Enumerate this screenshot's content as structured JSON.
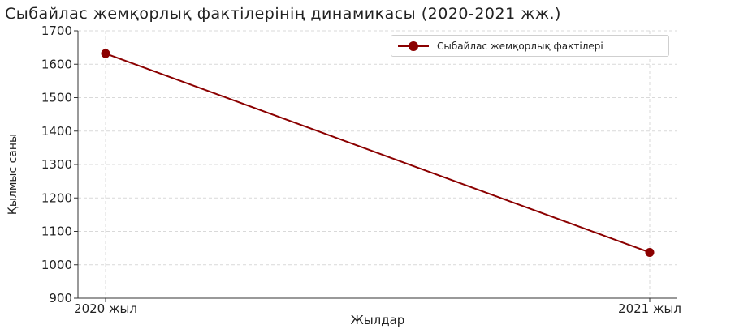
{
  "chart_data": {
    "type": "line",
    "title": "Сыбайлас жемқорлық фактілерінің динамикасы (2020-2021 жж.)",
    "xlabel": "Жылдар",
    "ylabel": "Қылмыс саны",
    "categories": [
      "2020 жыл",
      "2021 жыл"
    ],
    "series": [
      {
        "name": "Сыбайлас жемқорлық фактілері",
        "values": [
          1632,
          1037
        ],
        "color": "#8b0000"
      }
    ],
    "ylim": [
      900,
      1700
    ],
    "yticks": [
      900,
      1000,
      1100,
      1200,
      1300,
      1400,
      1500,
      1600,
      1700
    ],
    "grid": true,
    "legend_position": "top-right"
  }
}
